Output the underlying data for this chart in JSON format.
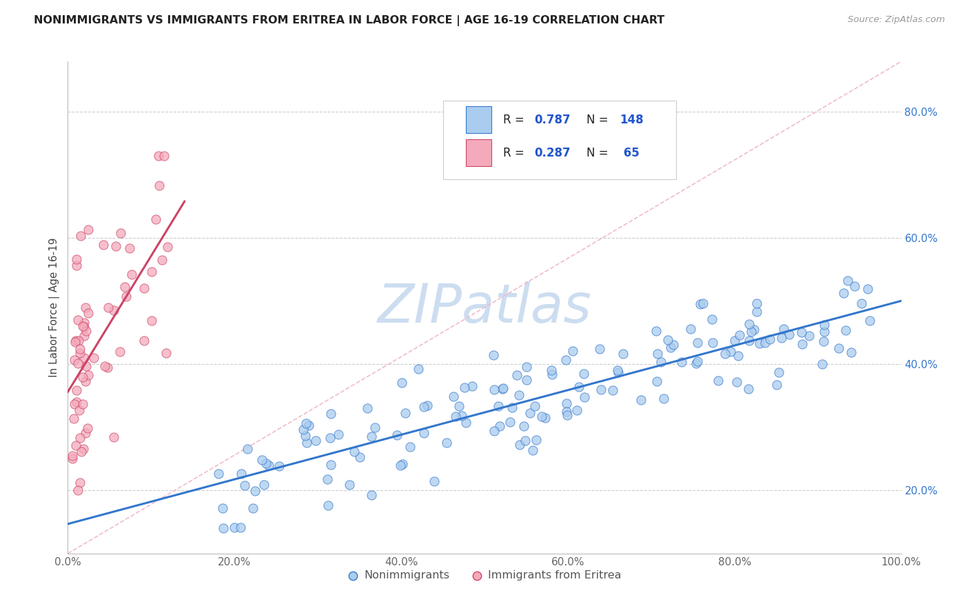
{
  "title": "NONIMMIGRANTS VS IMMIGRANTS FROM ERITREA IN LABOR FORCE | AGE 16-19 CORRELATION CHART",
  "source_text": "Source: ZipAtlas.com",
  "ylabel": "In Labor Force | Age 16-19",
  "xlim": [
    0.0,
    1.0
  ],
  "ylim": [
    0.1,
    0.88
  ],
  "xticks": [
    0.0,
    0.2,
    0.4,
    0.6,
    0.8,
    1.0
  ],
  "yticks": [
    0.2,
    0.4,
    0.6,
    0.8
  ],
  "xtick_labels": [
    "0.0%",
    "20.0%",
    "40.0%",
    "60.0%",
    "80.0%",
    "100.0%"
  ],
  "ytick_labels": [
    "20.0%",
    "40.0%",
    "60.0%",
    "80.0%"
  ],
  "legend_labels": [
    "Nonimmigrants",
    "Immigrants from Eritrea"
  ],
  "nonimm_R": 0.787,
  "nonimm_N": 148,
  "imm_R": 0.287,
  "imm_N": 65,
  "scatter_color_nonimm": "#aaccee",
  "scatter_color_imm": "#f4aabb",
  "line_color_nonimm": "#3377cc",
  "line_color_imm": "#cc4466",
  "dashed_line_color": "#f0bbcc",
  "grid_color": "#cccccc",
  "title_color": "#222222",
  "source_color": "#999999",
  "legend_R_color": "#2255cc",
  "background_color": "#ffffff",
  "watermark_color": "#ccddf0"
}
